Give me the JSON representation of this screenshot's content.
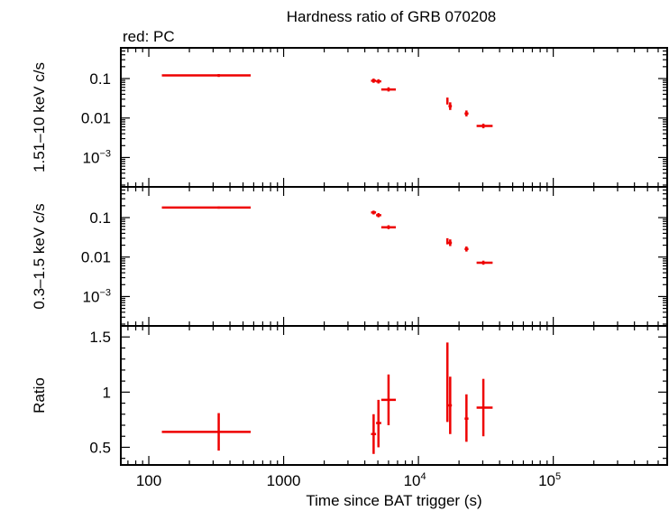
{
  "chart_data": {
    "type": "scatter",
    "title": "Hardness ratio of GRB 070208",
    "subtitle": "red: PC",
    "xlabel": "Time since BAT trigger (s)",
    "x_scale": "log",
    "xlim": [
      62,
      700000
    ],
    "x_ticks": [
      {
        "value": 100,
        "label": "100"
      },
      {
        "value": 1000,
        "label": "1000"
      },
      {
        "value": 10000,
        "label": "10",
        "exp": "4"
      },
      {
        "value": 100000,
        "label": "10",
        "exp": "5"
      }
    ],
    "series_color": "#ee0000",
    "panels": [
      {
        "key": "hard",
        "ylabel": "1.51–10 keV c/s",
        "y_scale": "log",
        "ylim": [
          0.00018,
          0.6
        ],
        "y_ticks": [
          {
            "value": 0.1,
            "label": "0.1"
          },
          {
            "value": 0.01,
            "label": "0.01"
          },
          {
            "value": 0.001,
            "label": "10",
            "exp": "−3"
          }
        ],
        "points": [
          {
            "x": 330,
            "x_lo": 125,
            "x_hi": 570,
            "y": 0.12,
            "y_lo": 0.11,
            "y_hi": 0.13
          },
          {
            "x": 4650,
            "x_lo": 4450,
            "x_hi": 4850,
            "y": 0.088,
            "y_lo": 0.078,
            "y_hi": 0.1
          },
          {
            "x": 5050,
            "x_lo": 4850,
            "x_hi": 5300,
            "y": 0.085,
            "y_lo": 0.075,
            "y_hi": 0.096
          },
          {
            "x": 6000,
            "x_lo": 5300,
            "x_hi": 6800,
            "y": 0.053,
            "y_lo": 0.047,
            "y_hi": 0.06
          },
          {
            "x": 16400,
            "x_lo": 16100,
            "x_hi": 16700,
            "y": 0.027,
            "y_lo": 0.022,
            "y_hi": 0.033
          },
          {
            "x": 17200,
            "x_lo": 16700,
            "x_hi": 17700,
            "y": 0.02,
            "y_lo": 0.016,
            "y_hi": 0.025
          },
          {
            "x": 22700,
            "x_lo": 22000,
            "x_hi": 23500,
            "y": 0.013,
            "y_lo": 0.011,
            "y_hi": 0.0155
          },
          {
            "x": 30300,
            "x_lo": 27000,
            "x_hi": 35500,
            "y": 0.0063,
            "y_lo": 0.0055,
            "y_hi": 0.0072
          }
        ]
      },
      {
        "key": "soft",
        "ylabel": "0.3–1.5 keV c/s",
        "y_scale": "log",
        "ylim": [
          0.00018,
          0.6
        ],
        "y_ticks": [
          {
            "value": 0.1,
            "label": "0.1"
          },
          {
            "value": 0.01,
            "label": "0.01"
          },
          {
            "value": 0.001,
            "label": "10",
            "exp": "−3"
          }
        ],
        "points": [
          {
            "x": 330,
            "x_lo": 125,
            "x_hi": 570,
            "y": 0.18,
            "y_lo": 0.168,
            "y_hi": 0.192
          },
          {
            "x": 4650,
            "x_lo": 4450,
            "x_hi": 4850,
            "y": 0.135,
            "y_lo": 0.12,
            "y_hi": 0.15
          },
          {
            "x": 5050,
            "x_lo": 4850,
            "x_hi": 5300,
            "y": 0.115,
            "y_lo": 0.102,
            "y_hi": 0.13
          },
          {
            "x": 6000,
            "x_lo": 5300,
            "x_hi": 6800,
            "y": 0.057,
            "y_lo": 0.051,
            "y_hi": 0.064
          },
          {
            "x": 16400,
            "x_lo": 16100,
            "x_hi": 16700,
            "y": 0.025,
            "y_lo": 0.021,
            "y_hi": 0.03
          },
          {
            "x": 17200,
            "x_lo": 16700,
            "x_hi": 17700,
            "y": 0.023,
            "y_lo": 0.019,
            "y_hi": 0.028
          },
          {
            "x": 22700,
            "x_lo": 22000,
            "x_hi": 23500,
            "y": 0.016,
            "y_lo": 0.0138,
            "y_hi": 0.0185
          },
          {
            "x": 30300,
            "x_lo": 27000,
            "x_hi": 35500,
            "y": 0.0072,
            "y_lo": 0.0064,
            "y_hi": 0.0081
          }
        ]
      },
      {
        "key": "ratio",
        "ylabel": "Ratio",
        "y_scale": "linear",
        "ylim": [
          0.34,
          1.6
        ],
        "y_ticks": [
          {
            "value": 0.5,
            "label": "0.5"
          },
          {
            "value": 1,
            "label": "1"
          },
          {
            "value": 1.5,
            "label": "1.5"
          }
        ],
        "minor_step": 0.1,
        "points": [
          {
            "x": 330,
            "x_lo": 125,
            "x_hi": 570,
            "y": 0.64,
            "y_lo": 0.47,
            "y_hi": 0.81
          },
          {
            "x": 4650,
            "x_lo": 4450,
            "x_hi": 4850,
            "y": 0.62,
            "y_lo": 0.44,
            "y_hi": 0.8
          },
          {
            "x": 5050,
            "x_lo": 4850,
            "x_hi": 5300,
            "y": 0.72,
            "y_lo": 0.5,
            "y_hi": 0.93
          },
          {
            "x": 6000,
            "x_lo": 5300,
            "x_hi": 6800,
            "y": 0.93,
            "y_lo": 0.7,
            "y_hi": 1.16
          },
          {
            "x": 16400,
            "x_lo": 16100,
            "x_hi": 16700,
            "y": 1.07,
            "y_lo": 0.73,
            "y_hi": 1.45
          },
          {
            "x": 17200,
            "x_lo": 16700,
            "x_hi": 17700,
            "y": 0.88,
            "y_lo": 0.62,
            "y_hi": 1.14
          },
          {
            "x": 22700,
            "x_lo": 22000,
            "x_hi": 23500,
            "y": 0.76,
            "y_lo": 0.55,
            "y_hi": 0.98
          },
          {
            "x": 30300,
            "x_lo": 27000,
            "x_hi": 35500,
            "y": 0.86,
            "y_lo": 0.6,
            "y_hi": 1.12
          }
        ]
      }
    ]
  }
}
